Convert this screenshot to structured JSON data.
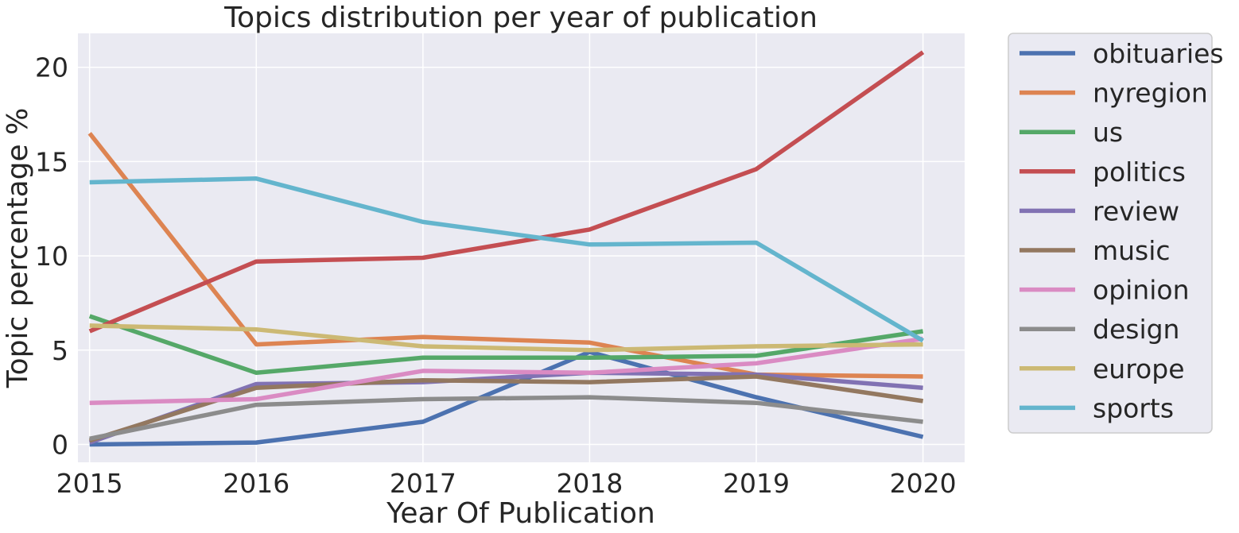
{
  "chart_data": {
    "type": "line",
    "title": "Topics distribution per year of publication",
    "xlabel": "Year Of Publication",
    "ylabel": "Topic percentage %",
    "x": [
      "2015",
      "2016",
      "2017",
      "2018",
      "2019",
      "2020"
    ],
    "xlim": [
      2014.93,
      2020.25
    ],
    "ylim": [
      -0.95,
      21.8
    ],
    "yticks": [
      "0",
      "5",
      "10",
      "15",
      "20"
    ],
    "grid": true,
    "legend_position": "outside-right",
    "series": [
      {
        "name": "obituaries",
        "color": "#4c72b0",
        "values": [
          0.0,
          0.1,
          1.2,
          4.9,
          2.5,
          0.4
        ]
      },
      {
        "name": "nyregion",
        "color": "#dd8452",
        "values": [
          16.5,
          5.3,
          5.7,
          5.4,
          3.7,
          3.6
        ]
      },
      {
        "name": "us",
        "color": "#55a868",
        "values": [
          6.8,
          3.8,
          4.6,
          4.6,
          4.7,
          6.0
        ]
      },
      {
        "name": "politics",
        "color": "#c44e52",
        "values": [
          6.0,
          9.7,
          9.9,
          11.4,
          14.6,
          20.8
        ]
      },
      {
        "name": "review",
        "color": "#8172b3",
        "values": [
          0.1,
          3.2,
          3.3,
          3.8,
          3.7,
          3.0
        ]
      },
      {
        "name": "music",
        "color": "#937860",
        "values": [
          0.2,
          3.0,
          3.4,
          3.3,
          3.6,
          2.3
        ]
      },
      {
        "name": "opinion",
        "color": "#da8bc3",
        "values": [
          2.2,
          2.4,
          3.9,
          3.8,
          4.3,
          5.6
        ]
      },
      {
        "name": "design",
        "color": "#8c8c8c",
        "values": [
          0.3,
          2.1,
          2.4,
          2.5,
          2.2,
          1.2
        ]
      },
      {
        "name": "europe",
        "color": "#ccb974",
        "values": [
          6.3,
          6.1,
          5.2,
          5.0,
          5.2,
          5.3
        ]
      },
      {
        "name": "sports",
        "color": "#64b5cd",
        "values": [
          13.9,
          14.1,
          11.8,
          10.6,
          10.7,
          5.5
        ]
      }
    ]
  }
}
